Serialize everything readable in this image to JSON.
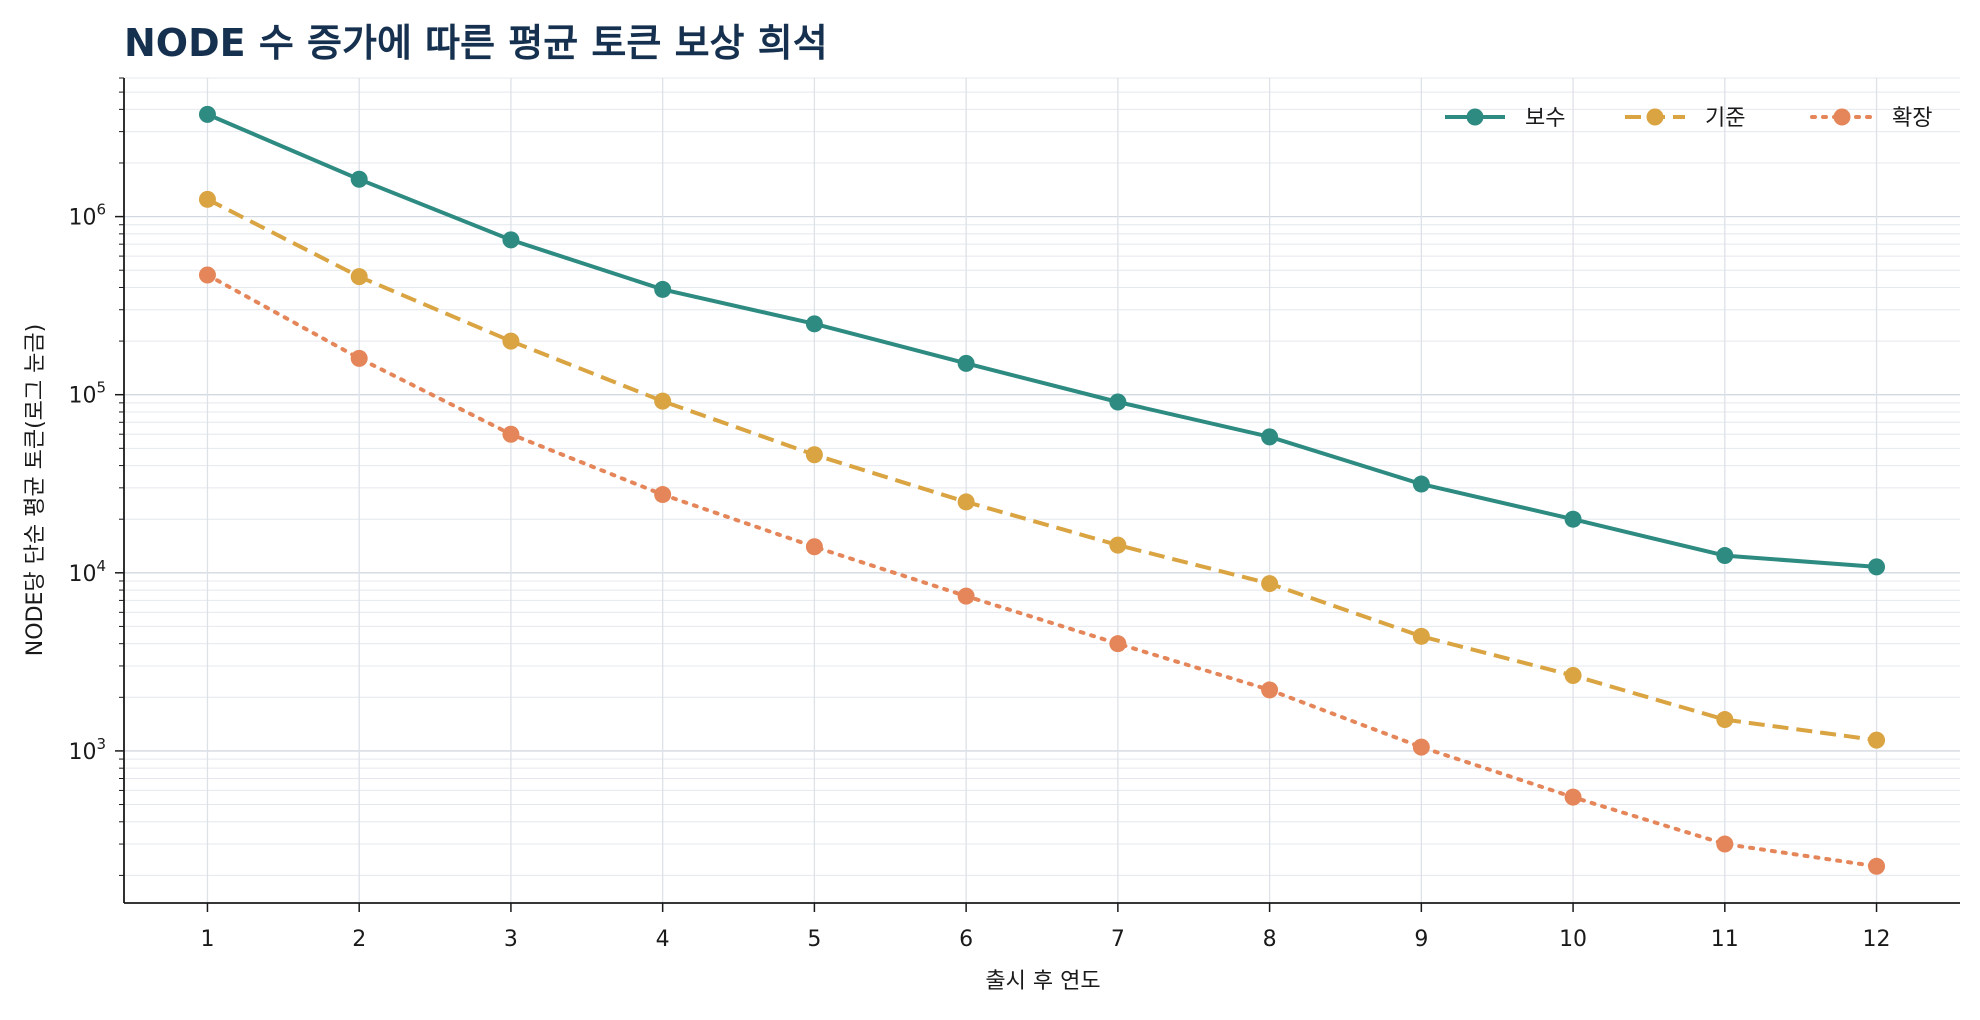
{
  "chart_data": {
    "type": "line",
    "title": "NODE 수 증가에 따른 평균 토큰 보상 희석",
    "xlabel": "출시 후 연도",
    "ylabel": "NODE당 단순 평균 토큰(로그 눈금)",
    "x": [
      1,
      2,
      3,
      4,
      5,
      6,
      7,
      8,
      9,
      10,
      11,
      12
    ],
    "xlim": [
      0.45,
      12.55
    ],
    "yscale": "log",
    "ylim": [
      140,
      6000000
    ],
    "yticks": [
      {
        "value": 1000,
        "base": "10",
        "exp": "3"
      },
      {
        "value": 10000,
        "base": "10",
        "exp": "4"
      },
      {
        "value": 100000,
        "base": "10",
        "exp": "5"
      },
      {
        "value": 1000000,
        "base": "10",
        "exp": "6"
      }
    ],
    "grid": true,
    "legend_position": "top-right",
    "series": [
      {
        "name": "보수",
        "color": "#2e8b82",
        "style": "solid",
        "values": [
          3750000,
          1620000,
          740000,
          390000,
          250000,
          150000,
          91000,
          58000,
          31500,
          20000,
          12500,
          10800
        ]
      },
      {
        "name": "기준",
        "color": "#d9a441",
        "style": "dashed",
        "values": [
          1250000,
          460000,
          200000,
          92000,
          46000,
          25000,
          14300,
          8700,
          4400,
          2650,
          1500,
          1150
        ]
      },
      {
        "name": "확장",
        "color": "#e5865a",
        "style": "dotted",
        "values": [
          470000,
          160000,
          60000,
          27500,
          14000,
          7400,
          4000,
          2200,
          1050,
          550,
          300,
          225
        ]
      }
    ]
  }
}
